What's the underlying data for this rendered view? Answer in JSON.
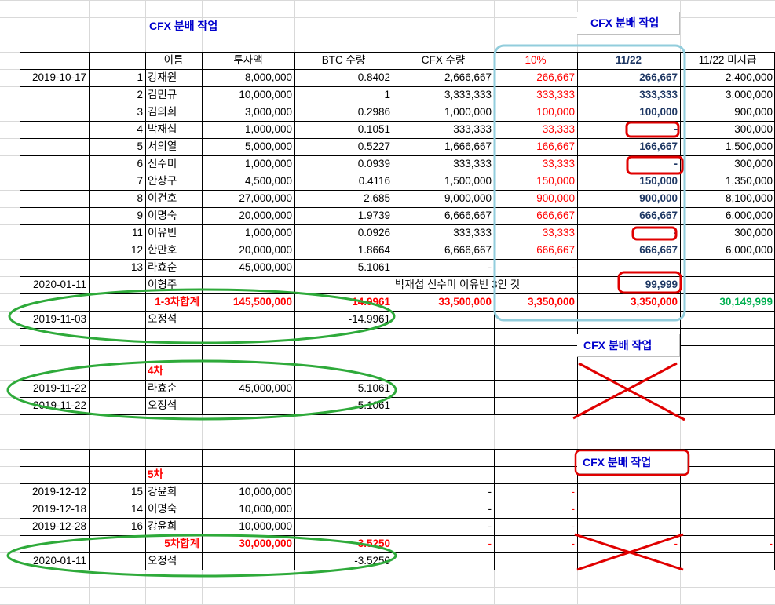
{
  "titles": {
    "main": "CFX 분배 작업",
    "box1": "CFX 분배 작업",
    "box2": "CFX 분배 작업",
    "box3": "CFX 분배 작업"
  },
  "headers": [
    "",
    "",
    "이름",
    "투자액",
    "BTC 수량",
    "CFX 수량",
    "10%",
    "11/22",
    "11/22 미지급"
  ],
  "rows": [
    [
      "2019-10-17",
      "1",
      "강재원",
      "8,000,000",
      "0.8402",
      "2,666,667",
      "266,667",
      "266,667",
      "2,400,000"
    ],
    [
      "",
      "2",
      "김민규",
      "10,000,000",
      "1",
      "3,333,333",
      "333,333",
      "333,333",
      "3,000,000"
    ],
    [
      "",
      "3",
      "김의희",
      "3,000,000",
      "0.2986",
      "1,000,000",
      "100,000",
      "100,000",
      "900,000"
    ],
    [
      "",
      "4",
      "박재섭",
      "1,000,000",
      "0.1051",
      "333,333",
      "33,333",
      "-",
      "300,000"
    ],
    [
      "",
      "5",
      "서의열",
      "5,000,000",
      "0.5227",
      "1,666,667",
      "166,667",
      "166,667",
      "1,500,000"
    ],
    [
      "",
      "6",
      "신수미",
      "1,000,000",
      "0.0939",
      "333,333",
      "33,333",
      "-",
      "300,000"
    ],
    [
      "",
      "7",
      "안상구",
      "4,500,000",
      "0.4116",
      "1,500,000",
      "150,000",
      "150,000",
      "1,350,000"
    ],
    [
      "",
      "8",
      "이건호",
      "27,000,000",
      "2.685",
      "9,000,000",
      "900,000",
      "900,000",
      "8,100,000"
    ],
    [
      "",
      "9",
      "이명숙",
      "20,000,000",
      "1.9739",
      "6,666,667",
      "666,667",
      "666,667",
      "6,000,000"
    ],
    [
      "",
      "11",
      "이유빈",
      "1,000,000",
      "0.0926",
      "333,333",
      "33,333",
      "-",
      "300,000"
    ],
    [
      "",
      "12",
      "한만호",
      "20,000,000",
      "1.8664",
      "6,666,667",
      "666,667",
      "666,667",
      "6,000,000"
    ],
    [
      "",
      "13",
      "라효순",
      "45,000,000",
      "5.1061",
      "-",
      "-",
      "",
      ""
    ]
  ],
  "row_extra": {
    "date": "2020-01-11",
    "name": "이형주",
    "note": "박재섭 신수미 이유빈 3인 것",
    "value": "99,999"
  },
  "subtotal1": {
    "label": "1-3차합계",
    "invest": "145,500,000",
    "btc": "14.9961",
    "cfx": "33,500,000",
    "pct": "3,350,000",
    "paid": "3,350,000",
    "unpaid": "30,149,999"
  },
  "row_oh1": {
    "date": "2019-11-03",
    "name": "오정석",
    "btc": "-14.9961"
  },
  "section4": {
    "label": "4차",
    "rows": [
      {
        "date": "2019-11-22",
        "name": "라효순",
        "invest": "45,000,000",
        "btc": "5.1061"
      },
      {
        "date": "2019-11-22",
        "name": "오정석",
        "invest": "",
        "btc": "-5.1061"
      }
    ]
  },
  "section5": {
    "label": "5차",
    "rows": [
      {
        "date": "2019-12-12",
        "no": "15",
        "name": "강윤희",
        "invest": "10,000,000",
        "cfx": "-",
        "pct": "-"
      },
      {
        "date": "2019-12-18",
        "no": "14",
        "name": "이명숙",
        "invest": "10,000,000",
        "cfx": "-",
        "pct": "-"
      },
      {
        "date": "2019-12-28",
        "no": "16",
        "name": "강윤희",
        "invest": "10,000,000",
        "cfx": "-",
        "pct": "-"
      }
    ],
    "subtotal": {
      "label": "5차합계",
      "invest": "30,000,000",
      "btc": "3.5250",
      "cfx": "-",
      "pct": "-",
      "paid": "-",
      "unpaid": "-"
    },
    "oh": {
      "date": "2020-01-11",
      "name": "오정석",
      "btc": "-3.5250"
    }
  },
  "colors": {
    "annot_blue": "#92cddc",
    "annot_red": "#e00000",
    "annot_green": "#2eaa3a",
    "negative_red": "#ff0000",
    "paid_navy": "#1f3864",
    "total_green": "#00b050"
  }
}
